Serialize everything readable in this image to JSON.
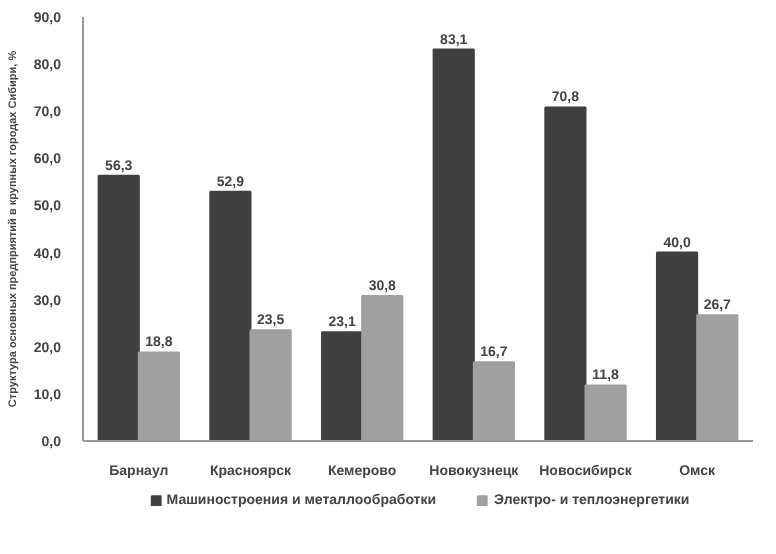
{
  "chart_data": {
    "type": "bar",
    "ylabel": "Структура основных предприятий в крупных городах Сибири, %",
    "categories": [
      "Барнаул",
      "Красноярск",
      "Кемерово",
      "Новокузнецк",
      "Новосибирск",
      "Омск"
    ],
    "series": [
      {
        "name": "Машиностроения и металлообработки",
        "color": "#404040",
        "values": [
          56.3,
          52.9,
          23.1,
          83.1,
          70.8,
          40.0
        ],
        "value_labels": [
          "56,3",
          "52,9",
          "23,1",
          "83,1",
          "70,8",
          "40,0"
        ]
      },
      {
        "name": "Электро- и теплоэнергетики",
        "color": "#a0a0a0",
        "values": [
          18.8,
          23.5,
          30.8,
          16.7,
          11.8,
          26.7
        ],
        "value_labels": [
          "18,8",
          "23,5",
          "30,8",
          "16,7",
          "11,8",
          "26,7"
        ]
      }
    ],
    "ylim": [
      0,
      90
    ],
    "yticks": [
      {
        "value": 0,
        "label": "0,0"
      },
      {
        "value": 10,
        "label": "10,0"
      },
      {
        "value": 20,
        "label": "20,0"
      },
      {
        "value": 30,
        "label": "30,0"
      },
      {
        "value": 40,
        "label": "40,0"
      },
      {
        "value": 50,
        "label": "50,0"
      },
      {
        "value": 60,
        "label": "60,0"
      },
      {
        "value": 70,
        "label": "70,0"
      },
      {
        "value": 80,
        "label": "80,0"
      },
      {
        "value": 90,
        "label": "90,0"
      }
    ],
    "grid": false,
    "legend": "bottom"
  }
}
